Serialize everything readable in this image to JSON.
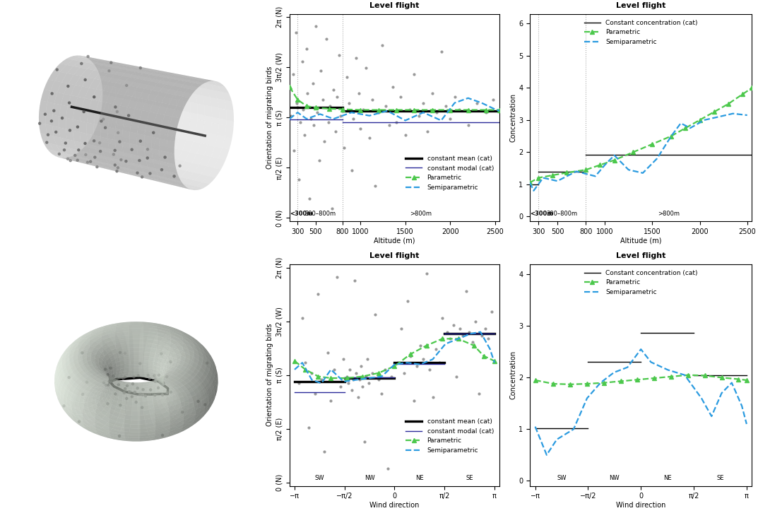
{
  "chart_data": [
    {
      "type": "line",
      "title": "Level flight",
      "xlabel": "Altitude (m)",
      "ylabel": "Orientation of migrating birds",
      "xlim": [
        210,
        2550
      ],
      "ylim": [
        -0.1,
        6.38
      ],
      "xticks": [
        300,
        500,
        800,
        1000,
        1500,
        2000,
        2500
      ],
      "yticks": [
        {
          "value": 0,
          "label": "0 (N)"
        },
        {
          "value": 1.5708,
          "label": "π/2 (E)"
        },
        {
          "value": 3.1416,
          "label": "π (S)"
        },
        {
          "value": 4.7124,
          "label": "3π/2 (W)"
        },
        {
          "value": 6.2832,
          "label": "2π (N)"
        }
      ],
      "legend": "lower right",
      "boundaries": [
        300,
        800
      ],
      "category_labels": [
        "<300m",
        "300–800m",
        ">800m"
      ],
      "series": [
        {
          "type": "scatter",
          "color": "#9a9a9a",
          "marker": "circle",
          "x": [
            230,
            250,
            260,
            280,
            290,
            310,
            330,
            350,
            360,
            380,
            400,
            410,
            430,
            450,
            470,
            480,
            500,
            520,
            540,
            560,
            580,
            600,
            620,
            640,
            660,
            680,
            700,
            720,
            740,
            760,
            780,
            820,
            850,
            870,
            900,
            920,
            950,
            980,
            1000,
            1030,
            1060,
            1100,
            1130,
            1160,
            1200,
            1240,
            1280,
            1320,
            1360,
            1400,
            1450,
            1500,
            1550,
            1600,
            1650,
            1700,
            1750,
            1800,
            1850,
            1900,
            1950,
            2000,
            2050,
            2100,
            2200,
            2300,
            2400,
            2480
          ],
          "values": [
            3.2,
            4.5,
            2.1,
            5.8,
            3.6,
            1.2,
            3.0,
            4.9,
            3.4,
            2.6,
            5.3,
            3.9,
            0.6,
            3.1,
            4.2,
            2.9,
            6.0,
            3.3,
            1.8,
            4.6,
            3.7,
            2.4,
            5.6,
            3.0,
            3.5,
            0.3,
            4.0,
            2.7,
            3.8,
            5.1,
            3.2,
            2.2,
            4.4,
            3.6,
            1.5,
            3.1,
            5.0,
            3.9,
            2.8,
            3.4,
            4.7,
            2.5,
            3.7,
            1.0,
            3.3,
            5.4,
            3.5,
            2.9,
            4.1,
            3.0,
            3.8,
            2.6,
            3.4,
            4.5,
            3.2,
            3.6,
            2.7,
            3.9,
            3.3,
            5.2,
            3.5,
            3.1,
            3.8,
            3.4,
            2.9,
            3.6,
            3.3,
            3.7
          ]
        },
        {
          "type": "segments",
          "name": "constant mean (cat)",
          "color": "#000000",
          "x": [
            [
              210,
              300
            ],
            [
              300,
              800
            ],
            [
              800,
              2550
            ]
          ],
          "values": [
            3.45,
            3.45,
            3.35
          ]
        },
        {
          "type": "segments",
          "name": "constant modal (cat)",
          "color": "#2b2b9a",
          "x": [
            [
              210,
              300
            ],
            [
              300,
              800
            ],
            [
              800,
              2550
            ]
          ],
          "values": [
            3.08,
            3.08,
            3.0
          ]
        },
        {
          "type": "line",
          "name": "Parametric",
          "color": "#4cc84c",
          "marker": "triangle",
          "line_style": "dashed",
          "x": [
            210,
            300,
            400,
            500,
            650,
            800,
            1000,
            1200,
            1400,
            1600,
            1800,
            2000,
            2200,
            2400,
            2550
          ],
          "values": [
            4.1,
            3.7,
            3.5,
            3.45,
            3.42,
            3.4,
            3.38,
            3.38,
            3.38,
            3.38,
            3.38,
            3.38,
            3.38,
            3.38,
            3.38
          ]
        },
        {
          "type": "line",
          "name": "Semiparametric",
          "color": "#2b9be0",
          "line_style": "dashed",
          "x": [
            210,
            300,
            400,
            550,
            700,
            900,
            1100,
            1300,
            1500,
            1700,
            1900,
            2050,
            2200,
            2350,
            2500,
            2550
          ],
          "values": [
            3.1,
            3.3,
            3.1,
            3.25,
            3.1,
            3.3,
            3.2,
            3.35,
            3.05,
            3.3,
            3.05,
            3.6,
            3.75,
            3.6,
            3.4,
            3.35
          ]
        }
      ]
    },
    {
      "type": "line",
      "title": "Level flight",
      "xlabel": "Altitude (m)",
      "ylabel": "Concentration",
      "xlim": [
        210,
        2550
      ],
      "ylim": [
        -0.15,
        6.3
      ],
      "xticks": [
        300,
        500,
        800,
        1000,
        1500,
        2000,
        2500
      ],
      "yticks": [
        0,
        1,
        2,
        3,
        4,
        5,
        6
      ],
      "legend": "upper center",
      "boundaries": [
        300,
        800
      ],
      "category_labels": [
        "<300m",
        "300–800m",
        ">800m"
      ],
      "series": [
        {
          "type": "segments",
          "name": "Constant concentration (cat)",
          "color": "#000000",
          "x": [
            [
              210,
              300
            ],
            [
              300,
              800
            ],
            [
              800,
              2550
            ]
          ],
          "values": [
            1.0,
            1.4,
            1.92
          ]
        },
        {
          "type": "line",
          "name": "Parametric",
          "color": "#4cc84c",
          "marker": "triangle",
          "line_style": "dashed",
          "x": [
            210,
            300,
            450,
            600,
            800,
            950,
            1100,
            1300,
            1500,
            1700,
            1850,
            2000,
            2150,
            2300,
            2450,
            2550
          ],
          "values": [
            1.05,
            1.2,
            1.28,
            1.36,
            1.45,
            1.6,
            1.75,
            2.0,
            2.25,
            2.5,
            2.75,
            3.0,
            3.25,
            3.5,
            3.8,
            4.0
          ]
        },
        {
          "type": "line",
          "name": "Semiparametric",
          "color": "#2b9be0",
          "line_style": "dashed",
          "x": [
            210,
            250,
            350,
            500,
            700,
            900,
            1000,
            1100,
            1250,
            1400,
            1550,
            1700,
            1800,
            1900,
            2050,
            2200,
            2350,
            2500
          ],
          "values": [
            1.05,
            0.8,
            1.2,
            1.1,
            1.4,
            1.25,
            1.6,
            1.9,
            1.45,
            1.35,
            1.8,
            2.5,
            2.9,
            2.75,
            3.0,
            3.1,
            3.2,
            3.15
          ]
        }
      ]
    },
    {
      "type": "line",
      "title": "Level flight",
      "xlabel": "Wind direction",
      "ylabel": "Orientation of migrating birds",
      "xlim": [
        -3.3,
        3.3
      ],
      "ylim": [
        -0.1,
        6.38
      ],
      "xticks": [
        {
          "value": -3.1416,
          "label": "−π"
        },
        {
          "value": -1.5708,
          "label": "−π/2"
        },
        0,
        {
          "value": 1.5708,
          "label": "π/2"
        },
        {
          "value": 3.1416,
          "label": "π"
        }
      ],
      "yticks": [
        {
          "value": 0,
          "label": "0 (N)"
        },
        {
          "value": 1.5708,
          "label": "π/2 (E)"
        },
        {
          "value": 3.1416,
          "label": "π (S)"
        },
        {
          "value": 4.7124,
          "label": "3π/2 (W)"
        },
        {
          "value": 6.2832,
          "label": "2π (N)"
        }
      ],
      "legend": "lower right",
      "category_labels": [
        "SW",
        "NW",
        "NE",
        "SE"
      ],
      "series": [
        {
          "type": "scatter",
          "color": "#9a9a9a",
          "marker": "circle",
          "x": [
            -3.0,
            -2.9,
            -2.8,
            -2.7,
            -2.6,
            -2.5,
            -2.4,
            -2.3,
            -2.2,
            -2.1,
            -2.0,
            -1.9,
            -1.8,
            -1.7,
            -1.6,
            -1.5,
            -1.45,
            -1.4,
            -1.35,
            -1.3,
            -1.25,
            -1.2,
            -1.15,
            -1.1,
            -1.05,
            -1.0,
            -0.95,
            -0.9,
            -0.85,
            -0.8,
            -0.7,
            -0.6,
            -0.5,
            -0.4,
            -0.3,
            -0.2,
            -0.1,
            0.1,
            0.2,
            0.3,
            0.4,
            0.5,
            0.6,
            0.7,
            0.8,
            0.9,
            1.0,
            1.1,
            1.2,
            1.3,
            1.4,
            1.5,
            1.65,
            1.75,
            1.85,
            1.95,
            2.05,
            2.15,
            2.25,
            2.35,
            2.45,
            2.55,
            2.65,
            2.75,
            2.85,
            2.95,
            3.05
          ],
          "values": [
            2.9,
            4.8,
            3.5,
            1.6,
            3.2,
            2.6,
            5.5,
            3.0,
            0.9,
            3.8,
            2.4,
            3.3,
            6.0,
            2.8,
            3.6,
            3.1,
            2.9,
            3.3,
            2.7,
            3.0,
            5.9,
            3.2,
            2.5,
            3.0,
            3.4,
            2.8,
            1.2,
            3.1,
            3.6,
            2.9,
            3.2,
            4.9,
            3.0,
            2.6,
            3.3,
            0.4,
            3.1,
            3.5,
            4.5,
            3.2,
            5.3,
            3.7,
            2.4,
            3.4,
            4.0,
            3.6,
            6.1,
            3.3,
            2.5,
            3.9,
            3.5,
            4.8,
            4.4,
            4.2,
            4.6,
            3.1,
            4.5,
            4.3,
            5.6,
            4.4,
            4.1,
            4.7,
            2.6,
            4.3,
            4.5,
            4.2,
            5.0
          ]
        },
        {
          "type": "segments",
          "name": "constant mean (cat)",
          "color": "#000000",
          "x": [
            [
              -3.1416,
              -1.5708
            ],
            [
              -1.5708,
              0
            ],
            [
              0,
              1.5708
            ],
            [
              1.5708,
              3.1416
            ]
          ],
          "values": [
            2.95,
            3.06,
            3.5,
            4.35
          ]
        },
        {
          "type": "segments",
          "name": "constant modal (cat)",
          "color": "#2b2b9a",
          "x": [
            [
              -3.1416,
              -1.5708
            ],
            [
              -1.5708,
              0
            ],
            [
              0,
              1.5708
            ],
            [
              1.5708,
              3.1416
            ]
          ],
          "values": [
            2.63,
            3.08,
            3.47,
            4.35
          ]
        },
        {
          "type": "line",
          "name": "Parametric",
          "color": "#4cc84c",
          "marker": "triangle",
          "line_style": "dashed",
          "x": [
            -3.1416,
            -2.8,
            -2.4,
            -2.0,
            -1.5,
            -1.0,
            -0.5,
            0,
            0.5,
            1.0,
            1.5,
            2.0,
            2.5,
            2.8,
            3.1416
          ],
          "values": [
            3.55,
            3.3,
            3.1,
            3.05,
            3.05,
            3.1,
            3.2,
            3.4,
            3.75,
            4.0,
            4.2,
            4.2,
            4.0,
            3.7,
            3.55
          ]
        },
        {
          "type": "line",
          "name": "Semiparametric",
          "color": "#2b9be0",
          "line_style": "dashed",
          "x": [
            -3.1416,
            -2.9,
            -2.6,
            -2.3,
            -2.0,
            -1.6,
            -1.2,
            -0.8,
            -0.4,
            0,
            0.4,
            0.8,
            1.2,
            1.6,
            2.0,
            2.4,
            2.7,
            3.0,
            3.1416
          ],
          "values": [
            3.3,
            3.5,
            3.0,
            2.9,
            3.3,
            2.95,
            3.0,
            3.05,
            3.1,
            3.45,
            3.5,
            3.45,
            3.6,
            4.05,
            4.2,
            4.35,
            4.4,
            3.9,
            3.5
          ]
        }
      ]
    },
    {
      "type": "line",
      "title": "Level flight",
      "xlabel": "Wind direction",
      "ylabel": "Concentration",
      "xlim": [
        -3.3,
        3.3
      ],
      "ylim": [
        -0.1,
        4.2
      ],
      "xticks": [
        {
          "value": -3.1416,
          "label": "−π"
        },
        {
          "value": -1.5708,
          "label": "−π/2"
        },
        0,
        {
          "value": 1.5708,
          "label": "π/2"
        },
        {
          "value": 3.1416,
          "label": "π"
        }
      ],
      "yticks": [
        0,
        1,
        2,
        3,
        4
      ],
      "legend": "upper center",
      "category_labels": [
        "SW",
        "NW",
        "NE",
        "SE"
      ],
      "series": [
        {
          "type": "segments",
          "name": "Constant concentration (cat)",
          "color": "#000000",
          "x": [
            [
              -3.1416,
              -1.5708
            ],
            [
              -1.5708,
              0
            ],
            [
              0,
              1.5708
            ],
            [
              1.5708,
              3.1416
            ]
          ],
          "values": [
            1.02,
            2.3,
            2.87,
            2.05
          ]
        },
        {
          "type": "line",
          "name": "Parametric",
          "color": "#4cc84c",
          "marker": "triangle",
          "line_style": "dashed",
          "x": [
            -3.1416,
            -2.6,
            -2.1,
            -1.6,
            -1.1,
            -0.6,
            -0.1,
            0.4,
            0.9,
            1.4,
            1.9,
            2.4,
            2.9,
            3.1416
          ],
          "values": [
            1.95,
            1.88,
            1.87,
            1.88,
            1.9,
            1.93,
            1.96,
            1.99,
            2.02,
            2.05,
            2.04,
            2.0,
            1.97,
            1.95
          ]
        },
        {
          "type": "line",
          "name": "Semiparametric",
          "color": "#2b9be0",
          "line_style": "dashed",
          "x": [
            -3.1416,
            -2.8,
            -2.5,
            -2.0,
            -1.6,
            -1.2,
            -0.8,
            -0.4,
            0,
            0.3,
            0.8,
            1.3,
            1.8,
            2.1,
            2.4,
            2.7,
            3.0,
            3.1416
          ],
          "values": [
            1.05,
            0.5,
            0.8,
            1.0,
            1.6,
            1.9,
            2.1,
            2.2,
            2.55,
            2.3,
            2.15,
            2.05,
            1.6,
            1.25,
            1.7,
            1.9,
            1.45,
            1.1
          ]
        }
      ]
    }
  ]
}
